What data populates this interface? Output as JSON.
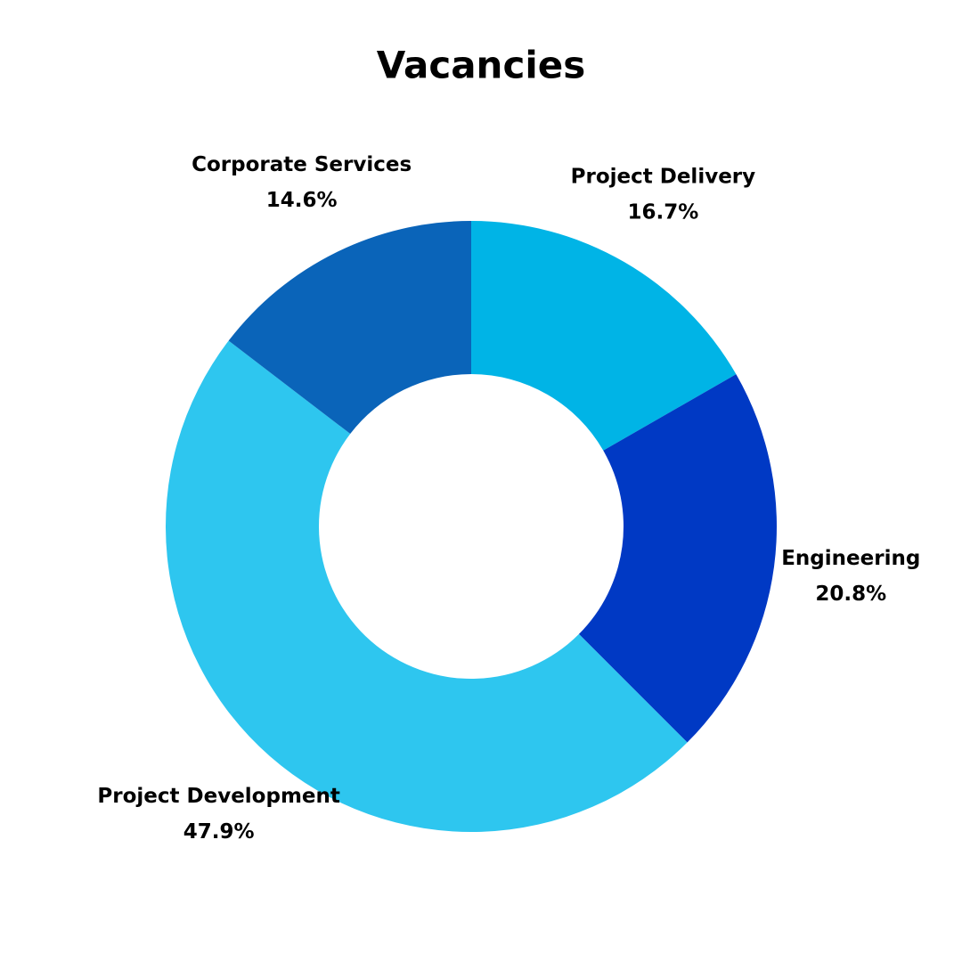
{
  "chart_data": {
    "type": "donut",
    "title": "Vacancies",
    "categories": [
      "Project Delivery",
      "Engineering",
      "Project Development",
      "Corporate Services"
    ],
    "values": [
      16.7,
      20.8,
      47.9,
      14.6
    ],
    "value_labels": [
      "16.7%",
      "20.8%",
      "47.9%",
      "14.6%"
    ],
    "colors": [
      "#00b4e6",
      "#0039c4",
      "#2ec6ef",
      "#0a64b9"
    ]
  }
}
